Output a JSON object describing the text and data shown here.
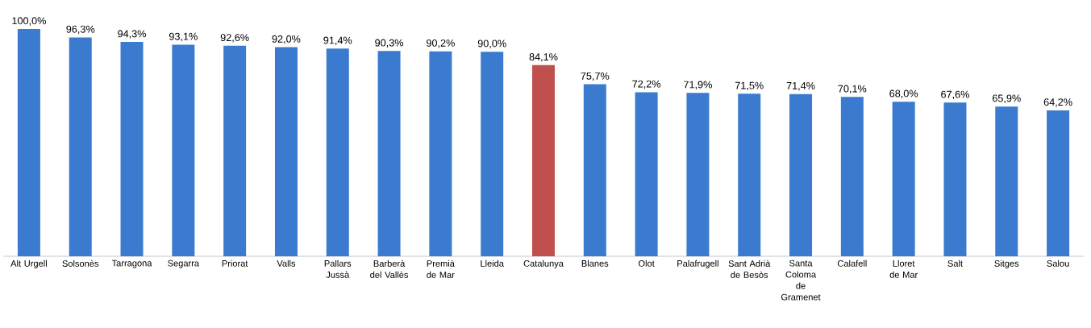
{
  "chart_data": {
    "type": "bar",
    "categories": [
      "Alt Urgell",
      "Solsonès",
      "Tarragona",
      "Segarra",
      "Priorat",
      "Valls",
      "Pallars Jussà",
      "Barberà del Vallès",
      "Premià de Mar",
      "Lleida",
      "Catalunya",
      "Blanes",
      "Olot",
      "Palafrugell",
      "Sant Adrià de Besòs",
      "Santa Coloma de Gramenet",
      "Calafell",
      "Lloret de Mar",
      "Salt",
      "Sitges",
      "Salou"
    ],
    "values": [
      100.0,
      96.3,
      94.3,
      93.1,
      92.6,
      92.0,
      91.4,
      90.3,
      90.2,
      90.0,
      84.1,
      75.7,
      72.2,
      71.9,
      71.5,
      71.4,
      70.1,
      68.0,
      67.6,
      65.9,
      64.2
    ],
    "value_labels": [
      "100,0%",
      "96,3%",
      "94,3%",
      "93,1%",
      "92,6%",
      "92,0%",
      "91,4%",
      "90,3%",
      "90,2%",
      "90,0%",
      "84,1%",
      "75,7%",
      "72,2%",
      "71,9%",
      "71,5%",
      "71,4%",
      "70,1%",
      "68,0%",
      "67,6%",
      "65,9%",
      "64,2%"
    ],
    "colors": [
      "#3a7bcf",
      "#3a7bcf",
      "#3a7bcf",
      "#3a7bcf",
      "#3a7bcf",
      "#3a7bcf",
      "#3a7bcf",
      "#3a7bcf",
      "#3a7bcf",
      "#3a7bcf",
      "#c0504d",
      "#3a7bcf",
      "#3a7bcf",
      "#3a7bcf",
      "#3a7bcf",
      "#3a7bcf",
      "#3a7bcf",
      "#3a7bcf",
      "#3a7bcf",
      "#3a7bcf",
      "#3a7bcf"
    ],
    "ylim": [
      0,
      100
    ],
    "tick_labels": "x",
    "grid": false
  }
}
